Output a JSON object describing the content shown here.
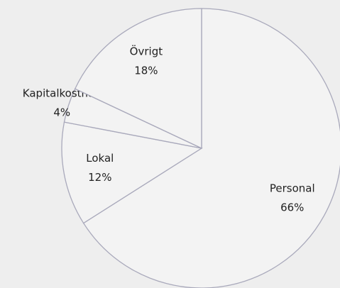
{
  "chart_data": {
    "type": "pie",
    "categories": [
      "Personal",
      "Lokal",
      "Kapitalkostnad",
      "Övrigt"
    ],
    "values": [
      66,
      12,
      4,
      18
    ],
    "value_labels": [
      "66%",
      "12%",
      "4%",
      "18%"
    ],
    "color": "#f3f3f3"
  }
}
